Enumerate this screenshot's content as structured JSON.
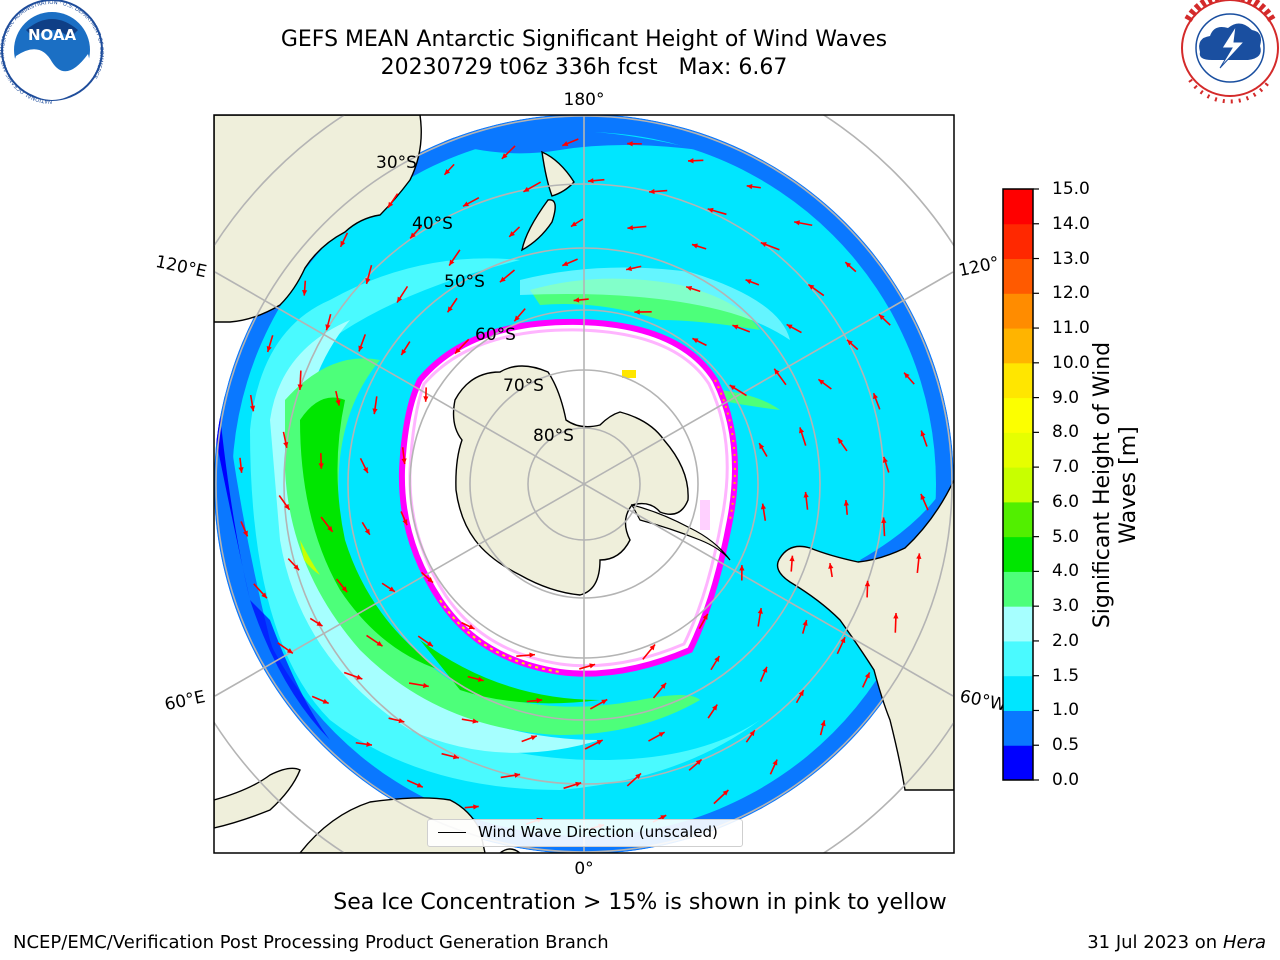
{
  "title": {
    "line1": "GEFS MEAN Antarctic Significant Height of Wind Waves",
    "line2": "20230729 t06z 336h fcst   Max: 6.67"
  },
  "logos": {
    "left": {
      "name": "NOARA-logo",
      "text": "NOAA",
      "ring_text": "NATIONAL OCEANIC AND ATMOSPHERIC ADMINISTRATION · U.S. DEPARTMENT OF COMMERCE"
    },
    "right": {
      "name": "nws-logo",
      "ring_text": "NATIONAL WEATHER SERVICE"
    }
  },
  "map": {
    "projection": "south-polar-stereographic",
    "longitude_labels": {
      "top": "180°",
      "bottom": "0°",
      "upper_left": "120°E",
      "upper_right": "120°",
      "lower_left": "60°E",
      "lower_right": "60°W"
    },
    "latitude_labels": [
      "30°S",
      "40°S",
      "50°S",
      "60°S",
      "70°S",
      "80°S"
    ],
    "legend": "Wind Wave Direction (unscaled)"
  },
  "colorbar": {
    "label": "Significant Height of Wind Waves [m]",
    "label_line1": "Significant Height of Wind",
    "label_line2": "Waves [m]",
    "ticks": [
      "0.0",
      "0.5",
      "1.0",
      "1.5",
      "2.0",
      "3.0",
      "4.0",
      "5.0",
      "6.0",
      "7.0",
      "8.0",
      "9.0",
      "10.0",
      "11.0",
      "12.0",
      "13.0",
      "14.0",
      "15.0"
    ],
    "colors": [
      "#0000ff",
      "#0a78ff",
      "#00e6ff",
      "#4afaff",
      "#a6ffff",
      "#4dff7a",
      "#00e600",
      "#52ef00",
      "#c8ff00",
      "#e6ff00",
      "#fcff00",
      "#ffe600",
      "#ffb400",
      "#ff8c00",
      "#ff5a00",
      "#ff2800",
      "#ff0000"
    ]
  },
  "colors": {
    "land": "#efefdb",
    "ice": "#ffffff",
    "sea_ice_edge": "#ff00ff",
    "arrows": "#ff0000",
    "grid": "#b4b4b4"
  },
  "footer": {
    "note": "Sea Ice Concentration > 15% is shown in pink to yellow",
    "left": "NCEP/EMC/Verification Post Processing Product Generation Branch",
    "right_date": "31 Jul 2023 on",
    "right_host": "Hera"
  }
}
